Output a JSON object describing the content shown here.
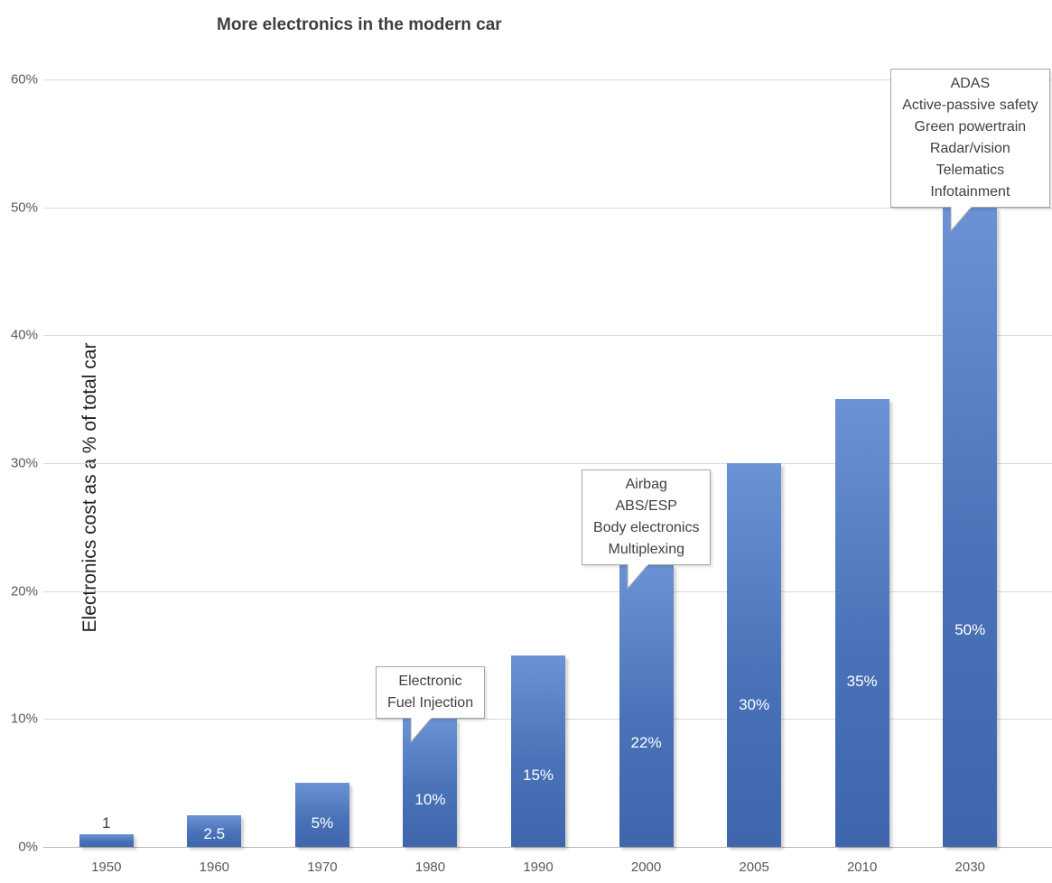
{
  "title": "More electronics in the modern car",
  "chart_data": {
    "type": "bar",
    "title": "More electronics in the modern car",
    "xlabel": "",
    "ylabel": "Electronics cost as a % of total car",
    "ylim": [
      0,
      60
    ],
    "ytick_step": 10,
    "ytick_suffix": "%",
    "grid": true,
    "legend": "none",
    "categories": [
      "1950",
      "1960",
      "1970",
      "1980",
      "1990",
      "2000",
      "2005",
      "2010",
      "2030"
    ],
    "values": [
      1,
      2.5,
      5,
      10,
      15,
      22,
      30,
      35,
      50
    ],
    "bar_labels": [
      "1",
      "2.5",
      "5%",
      "10%",
      "15%",
      "22%",
      "30%",
      "35%",
      "50%"
    ],
    "bar_label_inside": [
      false,
      true,
      true,
      true,
      true,
      true,
      true,
      true,
      true
    ],
    "bar_color_top": "#6a92d4",
    "bar_color_bottom": "#3f66ac",
    "annotations": [
      {
        "target": "1980",
        "lines": [
          "Electronic",
          "Fuel Injection"
        ]
      },
      {
        "target": "2000",
        "lines": [
          "Airbag",
          "ABS/ESP",
          "Body electronics",
          "Multiplexing"
        ]
      },
      {
        "target": "2030",
        "lines": [
          "ADAS",
          "Active-passive safety",
          "Green powertrain",
          "Radar/vision",
          "Telematics",
          "Infotainment"
        ]
      }
    ]
  }
}
